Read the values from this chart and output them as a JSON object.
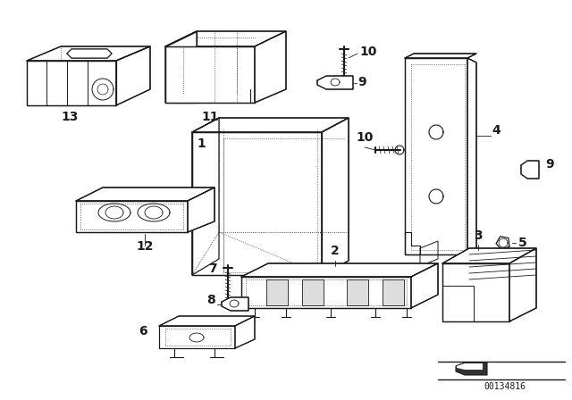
{
  "bg_color": "#ffffff",
  "line_color": "#1a1a1a",
  "part_number": "00134816",
  "figsize": [
    6.4,
    4.48
  ],
  "dpi": 100
}
